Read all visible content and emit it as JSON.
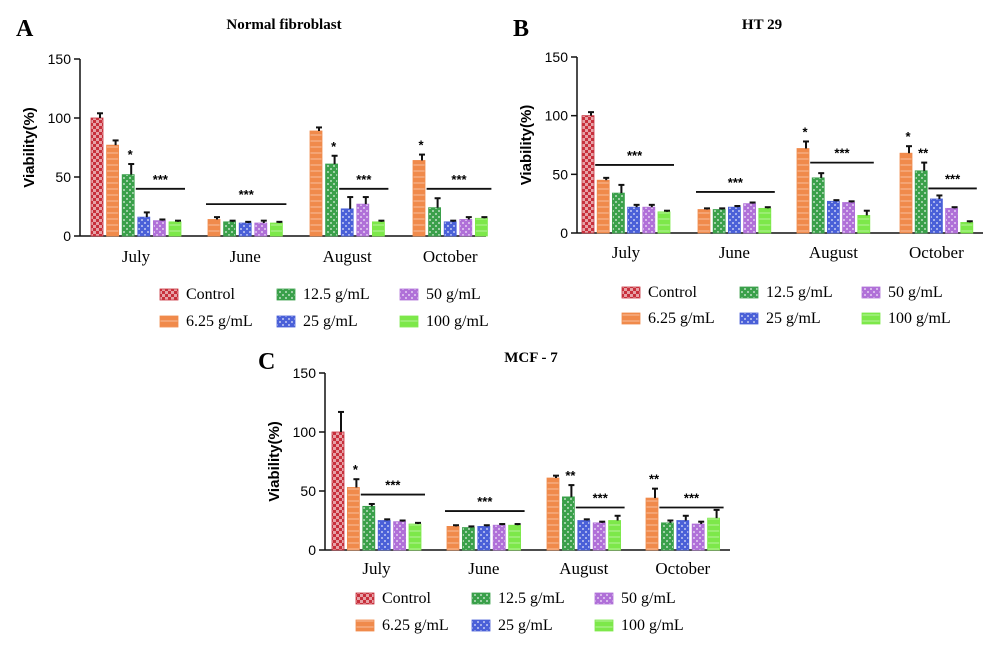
{
  "legend_entries": [
    "Control",
    "6.25 g/mL",
    "12.5 g/mL",
    "25 g/mL",
    "50 g/mL",
    "100 g/mL"
  ],
  "colors": {
    "Control": "#c8303c",
    "6.25 g/mL": "#f08a4b",
    "12.5 g/mL": "#3aa04a",
    "25 g/mL": "#4a60d8",
    "50 g/mL": "#b070d8",
    "100 g/mL": "#7de84a"
  },
  "chart_data": [
    {
      "panel": "A",
      "type": "bar",
      "title": "Normal fibroblast",
      "ylabel": "Viability(%)",
      "ylim": [
        0,
        150
      ],
      "yticks": [
        0,
        50,
        100,
        150
      ],
      "categories": [
        "July",
        "June",
        "August",
        "October"
      ],
      "series": [
        {
          "name": "Control",
          "values": [
            100,
            null,
            null,
            null
          ],
          "errors": [
            4,
            null,
            null,
            null
          ]
        },
        {
          "name": "6.25 g/mL",
          "values": [
            77,
            14,
            89,
            64
          ],
          "errors": [
            4,
            2,
            3,
            5
          ]
        },
        {
          "name": "12.5 g/mL",
          "values": [
            52,
            12,
            61,
            24
          ],
          "errors": [
            9,
            1,
            7,
            8
          ]
        },
        {
          "name": "25 g/mL",
          "values": [
            16,
            11,
            23,
            12
          ],
          "errors": [
            4,
            1,
            10,
            1
          ]
        },
        {
          "name": "50 g/mL",
          "values": [
            13,
            11,
            27,
            14
          ],
          "errors": [
            1,
            2,
            6,
            2
          ]
        },
        {
          "name": "100 g/mL",
          "values": [
            12,
            11,
            12,
            15
          ],
          "errors": [
            1,
            1,
            1,
            1
          ]
        }
      ],
      "significance": [
        {
          "category": "July",
          "series": "12.5 g/mL",
          "label": "*"
        },
        {
          "category": "July",
          "from_series": "25 g/mL",
          "to_series": "100 g/mL",
          "level": 40,
          "label": "***"
        },
        {
          "category": "June",
          "from_series": "6.25 g/mL",
          "to_series": "100 g/mL",
          "level": 27,
          "label": "***"
        },
        {
          "category": "August",
          "series": "12.5 g/mL",
          "label": "*"
        },
        {
          "category": "August",
          "from_series": "25 g/mL",
          "to_series": "100 g/mL",
          "level": 40,
          "label": "***"
        },
        {
          "category": "October",
          "series": "6.25 g/mL",
          "label": "*"
        },
        {
          "category": "October",
          "from_series": "12.5 g/mL",
          "to_series": "100 g/mL",
          "level": 40,
          "label": "***"
        }
      ]
    },
    {
      "panel": "B",
      "type": "bar",
      "title": "HT 29",
      "ylabel": "Viability(%)",
      "ylim": [
        0,
        150
      ],
      "yticks": [
        0,
        50,
        100,
        150
      ],
      "categories": [
        "July",
        "June",
        "August",
        "October"
      ],
      "series": [
        {
          "name": "Control",
          "values": [
            100,
            null,
            null,
            null
          ],
          "errors": [
            3,
            null,
            null,
            null
          ]
        },
        {
          "name": "6.25 g/mL",
          "values": [
            45,
            20,
            72,
            68
          ],
          "errors": [
            2,
            1,
            6,
            6
          ]
        },
        {
          "name": "12.5 g/mL",
          "values": [
            34,
            20,
            47,
            53
          ],
          "errors": [
            7,
            1,
            4,
            7
          ]
        },
        {
          "name": "25 g/mL",
          "values": [
            22,
            22,
            27,
            29
          ],
          "errors": [
            2,
            1,
            1,
            3
          ]
        },
        {
          "name": "50 g/mL",
          "values": [
            22,
            25,
            26,
            21
          ],
          "errors": [
            2,
            1,
            1,
            1
          ]
        },
        {
          "name": "100 g/mL",
          "values": [
            18,
            21,
            15,
            9
          ],
          "errors": [
            1,
            1,
            4,
            1
          ]
        }
      ],
      "significance": [
        {
          "category": "July",
          "from_series": "6.25 g/mL",
          "to_series": "100 g/mL",
          "level": 58,
          "label": "***"
        },
        {
          "category": "June",
          "from_series": "6.25 g/mL",
          "to_series": "100 g/mL",
          "level": 35,
          "label": "***"
        },
        {
          "category": "August",
          "series": "6.25 g/mL",
          "label": "*"
        },
        {
          "category": "August",
          "from_series": "12.5 g/mL",
          "to_series": "100 g/mL",
          "level": 60,
          "label": "***"
        },
        {
          "category": "October",
          "series": "6.25 g/mL",
          "label": "*"
        },
        {
          "category": "October",
          "series": "12.5 g/mL",
          "label": "**"
        },
        {
          "category": "October",
          "from_series": "25 g/mL",
          "to_series": "100 g/mL",
          "level": 38,
          "label": "***"
        }
      ]
    },
    {
      "panel": "C",
      "type": "bar",
      "title": "MCF - 7",
      "ylabel": "Viability(%)",
      "ylim": [
        0,
        150
      ],
      "yticks": [
        0,
        50,
        100,
        150
      ],
      "categories": [
        "July",
        "June",
        "August",
        "October"
      ],
      "series": [
        {
          "name": "Control",
          "values": [
            100,
            null,
            null,
            null
          ],
          "errors": [
            17,
            null,
            null,
            null
          ]
        },
        {
          "name": "6.25 g/mL",
          "values": [
            53,
            20,
            61,
            44
          ],
          "errors": [
            7,
            1,
            2,
            8
          ]
        },
        {
          "name": "12.5 g/mL",
          "values": [
            37,
            19,
            45,
            23
          ],
          "errors": [
            2,
            1,
            10,
            2
          ]
        },
        {
          "name": "25 g/mL",
          "values": [
            25,
            20,
            25,
            25
          ],
          "errors": [
            1,
            1,
            1,
            4
          ]
        },
        {
          "name": "50 g/mL",
          "values": [
            24,
            21,
            23,
            22
          ],
          "errors": [
            1,
            1,
            1,
            2
          ]
        },
        {
          "name": "100 g/mL",
          "values": [
            22,
            21,
            25,
            27
          ],
          "errors": [
            1,
            1,
            4,
            7
          ]
        }
      ],
      "significance": [
        {
          "category": "July",
          "series": "6.25 g/mL",
          "label": "*"
        },
        {
          "category": "July",
          "from_series": "12.5 g/mL",
          "to_series": "100 g/mL",
          "level": 47,
          "label": "***"
        },
        {
          "category": "June",
          "from_series": "6.25 g/mL",
          "to_series": "100 g/mL",
          "level": 33,
          "label": "***"
        },
        {
          "category": "August",
          "series": "12.5 g/mL",
          "label": "**"
        },
        {
          "category": "August",
          "from_series": "25 g/mL",
          "to_series": "100 g/mL",
          "level": 36,
          "label": "***"
        },
        {
          "category": "October",
          "series": "6.25 g/mL",
          "label": "**"
        },
        {
          "category": "October",
          "from_series": "12.5 g/mL",
          "to_series": "100 g/mL",
          "level": 36,
          "label": "***"
        }
      ]
    }
  ]
}
